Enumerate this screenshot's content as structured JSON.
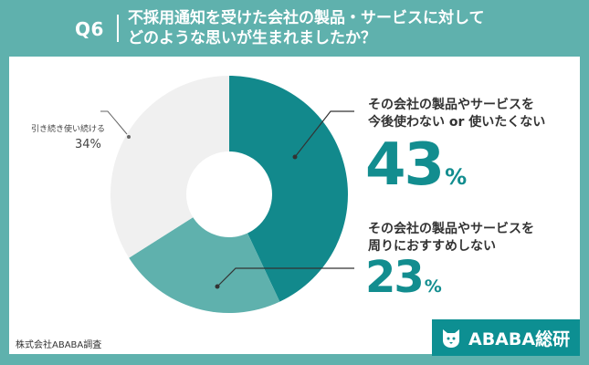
{
  "header": {
    "q_label": "Q6",
    "question_line1": "不採用通知を受けた会社の製品・サービスに対して",
    "question_line2": "どのような思いが生まれましたか？"
  },
  "chart_data": {
    "type": "pie",
    "labels": [
      "その会社の製品やサービスを今後使わない or 使いたくない",
      "その会社の製品やサービスを周りにおすすめしない",
      "引き続き使い続ける"
    ],
    "values": [
      43,
      23,
      34
    ],
    "unit": "%",
    "colors": [
      "#12898c",
      "#5fb1ad",
      "#f0f0f0"
    ],
    "donut": true
  },
  "annotations": {
    "a1_line1": "その会社の製品やサービスを",
    "a1_line2": "今後使わない or 使いたくない",
    "a1_value": "43",
    "a2_line1": "その会社の製品やサービスを",
    "a2_line2": "周りにおすすめしない",
    "a2_value": "23",
    "percent_sign": "%",
    "continue_label": "引き続き使い続ける",
    "continue_value": "34%"
  },
  "source": "株式会社ABABA調査",
  "logo": {
    "text": "ABABA総研",
    "icon": "dog-face-icon"
  }
}
